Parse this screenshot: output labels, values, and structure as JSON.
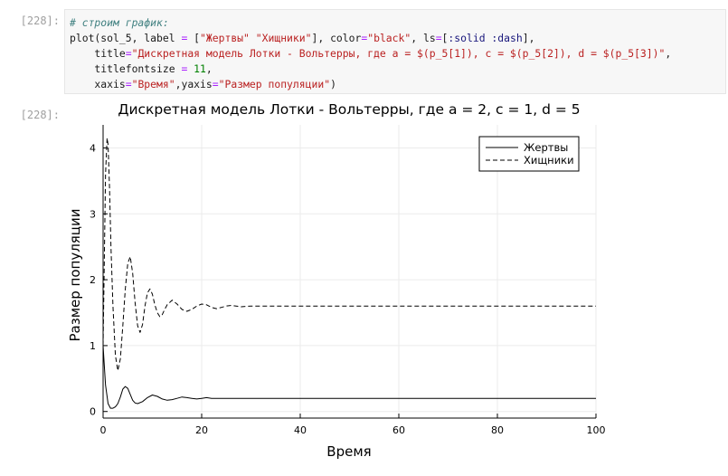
{
  "cell": {
    "in_prompt": "[228]:",
    "out_prompt": "[228]:",
    "code": {
      "comment": "# строим график:",
      "l2_a": "plot(sol_5, label ",
      "l2_eq": "=",
      "l2_b": " [",
      "l2_s1": "\"Жертвы\"",
      "l2_c": " ",
      "l2_s2": "\"Хищники\"",
      "l2_d": "], color",
      "l2_eq2": "=",
      "l2_s3": "\"black\"",
      "l2_e": ", ls",
      "l2_eq3": "=",
      "l2_f": "[",
      "l2_sym1": ":solid",
      "l2_g": " ",
      "l2_sym2": ":dash",
      "l2_h": "],",
      "l3_a": "    title",
      "l3_eq": "=",
      "l3_s": "\"Дискретная модель Лотки - Вольтерры, где a = $(p_5[1]), c = $(p_5[2]), d = $(p_5[3])\"",
      "l3_b": ",",
      "l4_a": "    titlefontsize ",
      "l4_eq": "=",
      "l4_b": " ",
      "l4_num": "11",
      "l4_c": ",",
      "l5_a": "    xaxis",
      "l5_eq": "=",
      "l5_s1": "\"Время\"",
      "l5_b": ",yaxis",
      "l5_eq2": "=",
      "l5_s2": "\"Размер популяции\"",
      "l5_c": ")"
    }
  },
  "chart_data": {
    "type": "line",
    "title": "Дискретная модель Лотки - Вольтерры, где a = 2, c = 1, d = 5",
    "xlabel": "Время",
    "ylabel": "Размер популяции",
    "xlim": [
      0,
      100
    ],
    "ylim": [
      -0.1,
      4.35
    ],
    "xticks": [
      0,
      20,
      40,
      60,
      80,
      100
    ],
    "yticks": [
      0,
      1,
      2,
      3,
      4
    ],
    "grid": true,
    "legend_position": "top-right",
    "colors": {
      "line": "#000000",
      "grid": "#ebebeb",
      "axis": "#000000"
    },
    "series": [
      {
        "name": "Жертвы",
        "style": "solid",
        "x": [
          0,
          0.2,
          0.5,
          1,
          1.5,
          2,
          2.5,
          3,
          3.5,
          4,
          4.5,
          5,
          5.5,
          6,
          6.5,
          7,
          8,
          9,
          10,
          11,
          12,
          13,
          14,
          15,
          16,
          17,
          18,
          19,
          20,
          21,
          22,
          24,
          26,
          28,
          30,
          35,
          40,
          50,
          60,
          70,
          80,
          90,
          100
        ],
        "y": [
          1.0,
          0.75,
          0.4,
          0.12,
          0.05,
          0.05,
          0.07,
          0.12,
          0.22,
          0.34,
          0.38,
          0.35,
          0.26,
          0.17,
          0.13,
          0.12,
          0.15,
          0.21,
          0.25,
          0.23,
          0.19,
          0.17,
          0.18,
          0.2,
          0.22,
          0.21,
          0.2,
          0.19,
          0.2,
          0.21,
          0.2,
          0.2,
          0.2,
          0.2,
          0.2,
          0.2,
          0.2,
          0.2,
          0.2,
          0.2,
          0.2,
          0.2,
          0.2
        ]
      },
      {
        "name": "Хищники",
        "style": "dash",
        "x": [
          0,
          0.5,
          0.8,
          1,
          1.3,
          1.6,
          2,
          2.5,
          3,
          3.5,
          4,
          4.5,
          5,
          5.5,
          6,
          6.5,
          7,
          7.5,
          8,
          8.5,
          9,
          9.5,
          10,
          10.5,
          11,
          11.5,
          12,
          12.5,
          13,
          14,
          15,
          16,
          17,
          18,
          19,
          20,
          21,
          22,
          23,
          24,
          25,
          26,
          27,
          28,
          30,
          32,
          35,
          40,
          50,
          60,
          70,
          80,
          90,
          100
        ],
        "y": [
          1.0,
          3.6,
          4.15,
          4.05,
          3.4,
          2.5,
          1.6,
          0.85,
          0.62,
          0.8,
          1.3,
          1.85,
          2.25,
          2.35,
          2.1,
          1.65,
          1.3,
          1.2,
          1.32,
          1.6,
          1.8,
          1.86,
          1.78,
          1.62,
          1.5,
          1.44,
          1.47,
          1.55,
          1.62,
          1.69,
          1.63,
          1.55,
          1.52,
          1.55,
          1.6,
          1.63,
          1.62,
          1.58,
          1.56,
          1.58,
          1.6,
          1.61,
          1.6,
          1.59,
          1.6,
          1.6,
          1.6,
          1.6,
          1.6,
          1.6,
          1.6,
          1.6,
          1.6,
          1.6
        ]
      }
    ]
  }
}
